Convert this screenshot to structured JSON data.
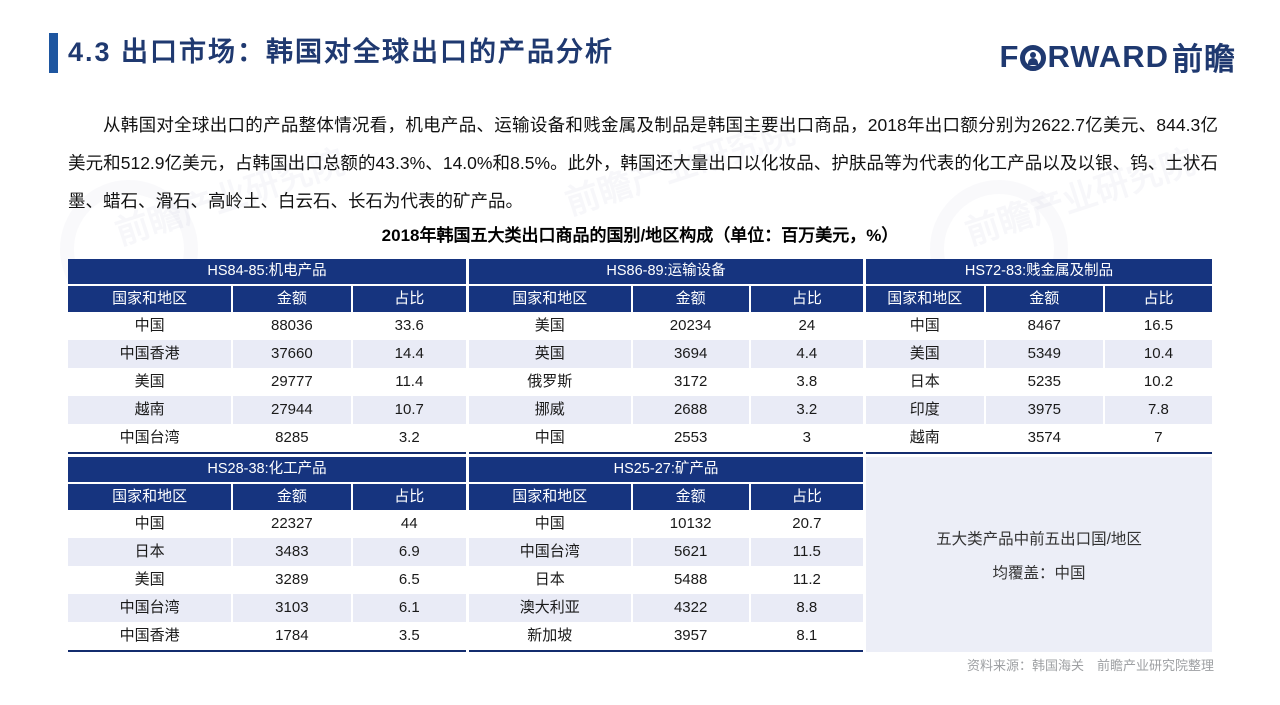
{
  "page": {
    "title": "4.3 出口市场：韩国对全球出口的产品分析",
    "logo": {
      "pre": "F",
      "rest": "RWARD",
      "cn": "前瞻"
    },
    "intro": "从韩国对全球出口的产品整体情况看，机电产品、运输设备和贱金属及制品是韩国主要出口商品，2018年出口额分别为2622.7亿美元、844.3亿美元和512.9亿美元，占韩国出口总额的43.3%、14.0%和8.5%。此外，韩国还大量出口以化妆品、护肤品等为代表的化工产品以及以银、钨、土状石墨、蜡石、滑石、高岭土、白云石、长石为代表的矿产品。",
    "table_title": "2018年韩国五大类出口商品的国别/地区构成（单位：百万美元，%）",
    "source": "资料来源：韩国海关　前瞻产业研究院整理",
    "watermark": "前瞻产业研究院"
  },
  "columns": [
    "国家和地区",
    "金额",
    "占比"
  ],
  "tables": [
    {
      "name": "HS84-85:机电产品",
      "rows": [
        [
          "中国",
          "88036",
          "33.6"
        ],
        [
          "中国香港",
          "37660",
          "14.4"
        ],
        [
          "美国",
          "29777",
          "11.4"
        ],
        [
          "越南",
          "27944",
          "10.7"
        ],
        [
          "中国台湾",
          "8285",
          "3.2"
        ]
      ]
    },
    {
      "name": "HS86-89:运输设备",
      "rows": [
        [
          "美国",
          "20234",
          "24"
        ],
        [
          "英国",
          "3694",
          "4.4"
        ],
        [
          "俄罗斯",
          "3172",
          "3.8"
        ],
        [
          "挪威",
          "2688",
          "3.2"
        ],
        [
          "中国",
          "2553",
          "3"
        ]
      ]
    },
    {
      "name": "HS72-83:贱金属及制品",
      "rows": [
        [
          "中国",
          "8467",
          "16.5"
        ],
        [
          "美国",
          "5349",
          "10.4"
        ],
        [
          "日本",
          "5235",
          "10.2"
        ],
        [
          "印度",
          "3975",
          "7.8"
        ],
        [
          "越南",
          "3574",
          "7"
        ]
      ]
    },
    {
      "name": "HS28-38:化工产品",
      "rows": [
        [
          "中国",
          "22327",
          "44"
        ],
        [
          "日本",
          "3483",
          "6.9"
        ],
        [
          "美国",
          "3289",
          "6.5"
        ],
        [
          "中国台湾",
          "3103",
          "6.1"
        ],
        [
          "中国香港",
          "1784",
          "3.5"
        ]
      ]
    },
    {
      "name": "HS25-27:矿产品",
      "rows": [
        [
          "中国",
          "10132",
          "20.7"
        ],
        [
          "中国台湾",
          "5621",
          "11.5"
        ],
        [
          "日本",
          "5488",
          "11.2"
        ],
        [
          "澳大利亚",
          "4322",
          "8.8"
        ],
        [
          "新加坡",
          "3957",
          "8.1"
        ]
      ]
    }
  ],
  "note": {
    "line1": "五大类产品中前五出口国/地区",
    "line2": "均覆盖：中国"
  },
  "colors": {
    "header_navy": "#16347f",
    "table_border": "#132c6e",
    "row_stripe": "#e9ebf6",
    "note_bg": "#eceef7",
    "accent_blue": "#1e56a0",
    "title_navy": "#1f3970",
    "source_gray": "#9ea0a3"
  }
}
